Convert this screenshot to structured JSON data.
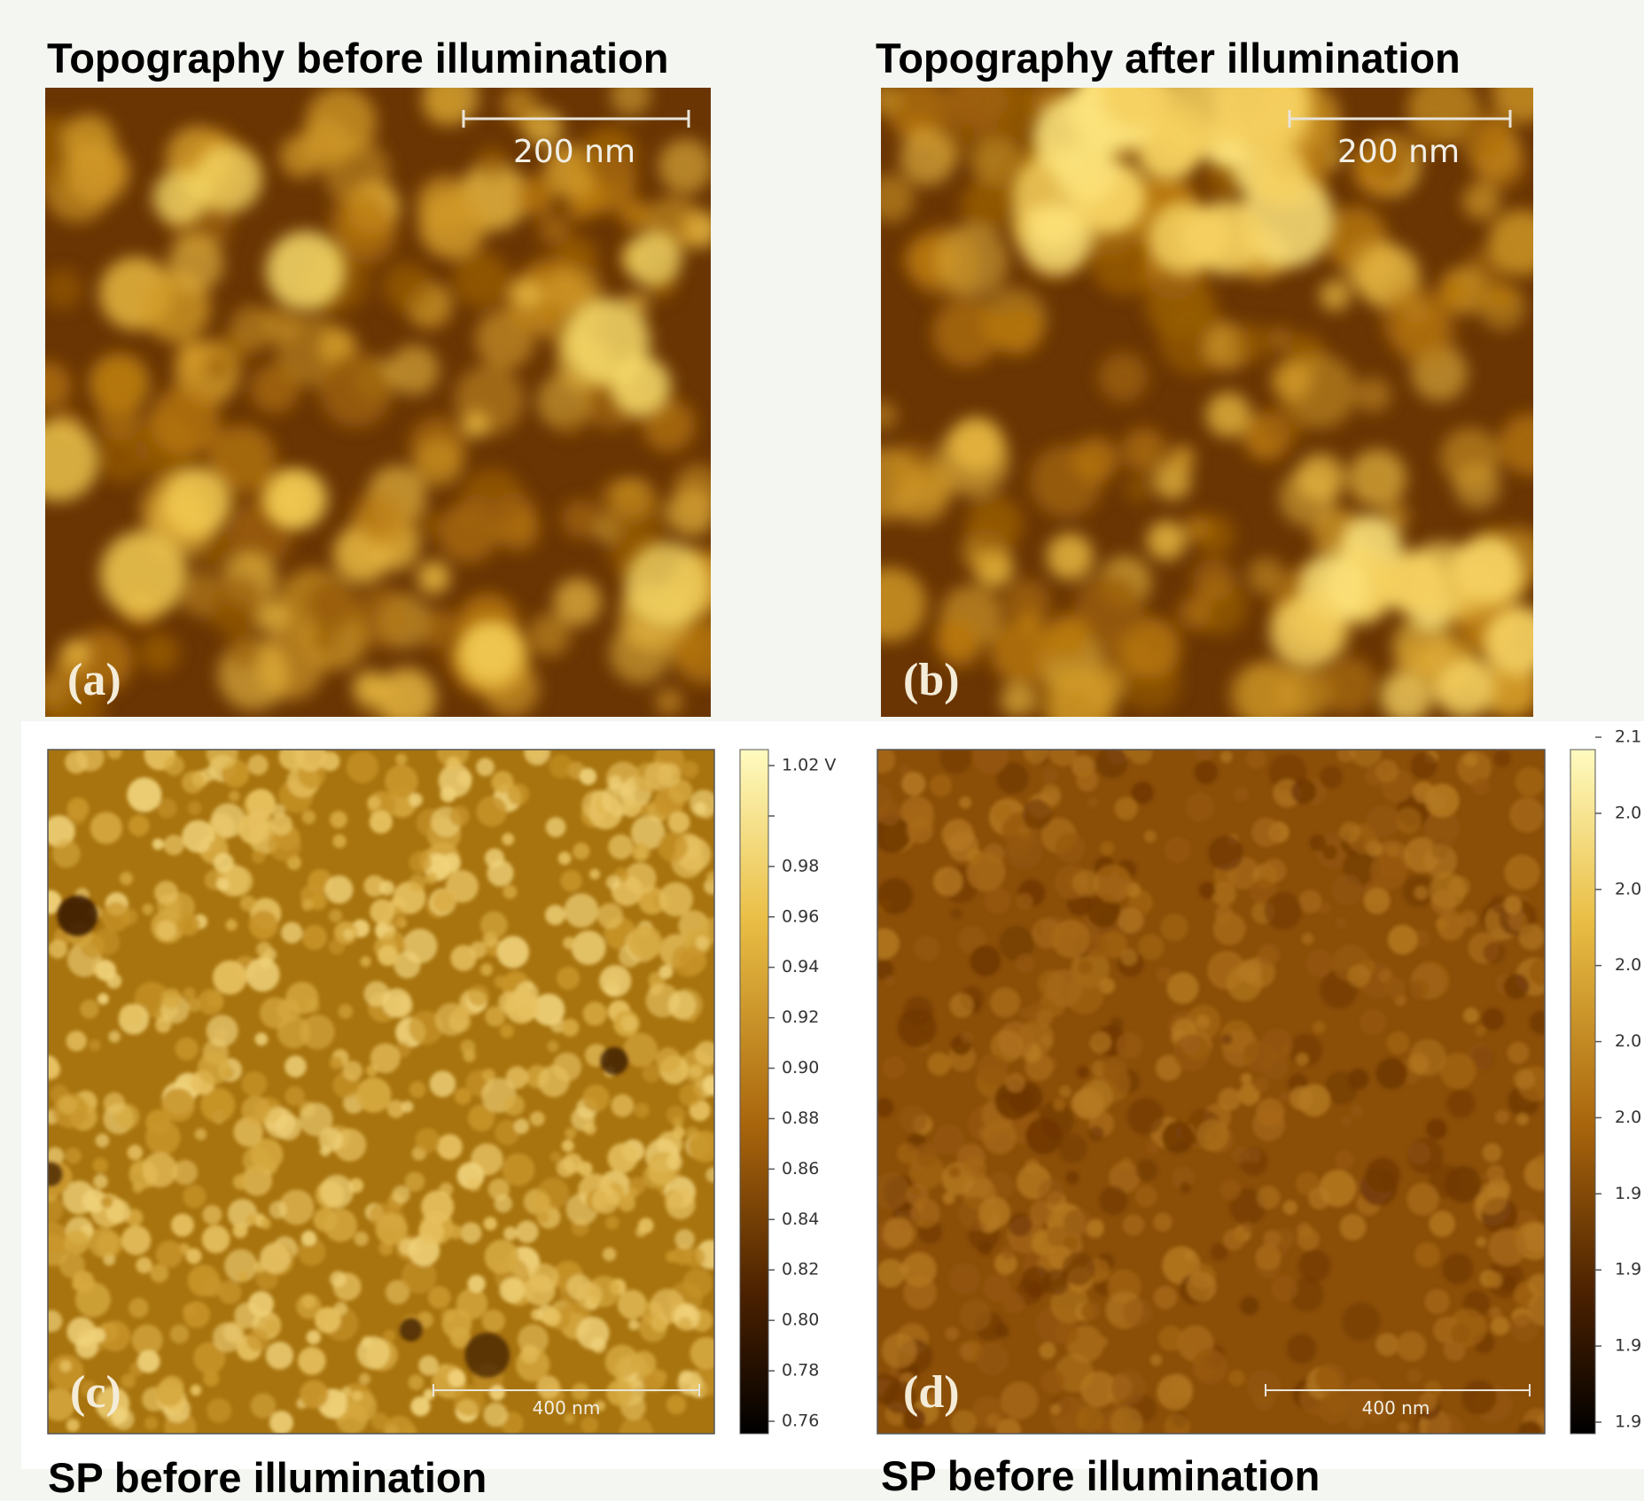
{
  "panels": [
    {
      "title": "Topography before illumination",
      "label": "(a)",
      "scale_bar": "200 nm"
    },
    {
      "title": "Topography after illumination",
      "label": "(b)",
      "scale_bar": "200 nm"
    },
    {
      "title": "SP before illumination",
      "label": "(c)",
      "scale_bar": "400 nm",
      "colorbar": [
        "1.02 V",
        "0.98",
        "0.96",
        "0.94",
        "0.92",
        "0.90",
        "0.88",
        "0.86",
        "0.84",
        "0.82",
        "0.80",
        "0.78",
        "0.76"
      ]
    },
    {
      "title": "SP before illumination",
      "label": "(d)",
      "scale_bar": "400 nm",
      "colorbar": [
        "2.1",
        "2.0",
        "2.0",
        "2.0",
        "2.0",
        "2.0",
        "1.9",
        "1.9",
        "1.9",
        "1.9"
      ]
    }
  ]
}
